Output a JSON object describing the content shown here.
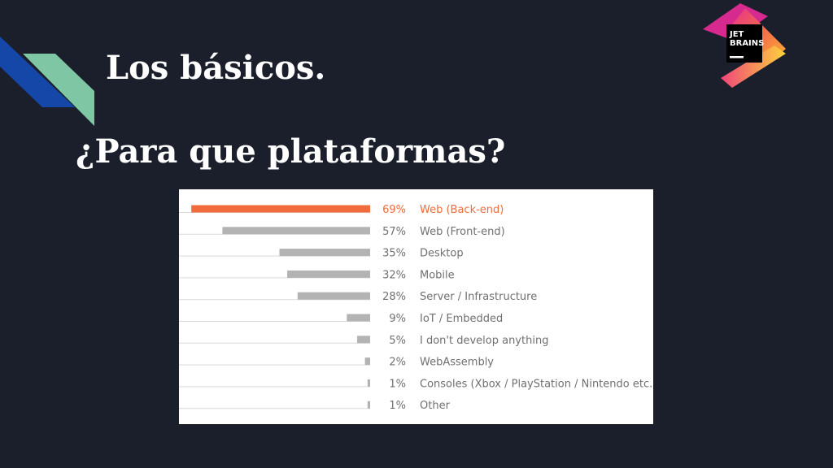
{
  "slide": {
    "title": "Los básicos.",
    "subtitle": "¿Para que plataformas?",
    "logo": {
      "line1": "JET",
      "line2": "BRAINS",
      "icon": "jetbrains-logo-icon"
    }
  },
  "colors": {
    "background": "#1b1f2b",
    "highlight_bar": "#f26b3a",
    "default_bar": "#b3b3b3",
    "text": "#707070",
    "decor_blue": "#1547a8",
    "decor_green": "#7fc6a4"
  },
  "chart_data": {
    "type": "bar",
    "orientation": "horizontal",
    "value_suffix": "%",
    "xlim": [
      0,
      70
    ],
    "highlight_index": 0,
    "categories": [
      "Web (Back-end)",
      "Web (Front-end)",
      "Desktop",
      "Mobile",
      "Server / Infrastructure",
      "IoT / Embedded",
      "I don't develop anything",
      "WebAssembly",
      "Consoles (Xbox / PlayStation / Nintendo etc.)",
      "Other"
    ],
    "values": [
      69,
      57,
      35,
      32,
      28,
      9,
      5,
      2,
      1,
      1
    ],
    "title": "",
    "xlabel": "",
    "ylabel": "",
    "grid": false,
    "legend": "none"
  }
}
